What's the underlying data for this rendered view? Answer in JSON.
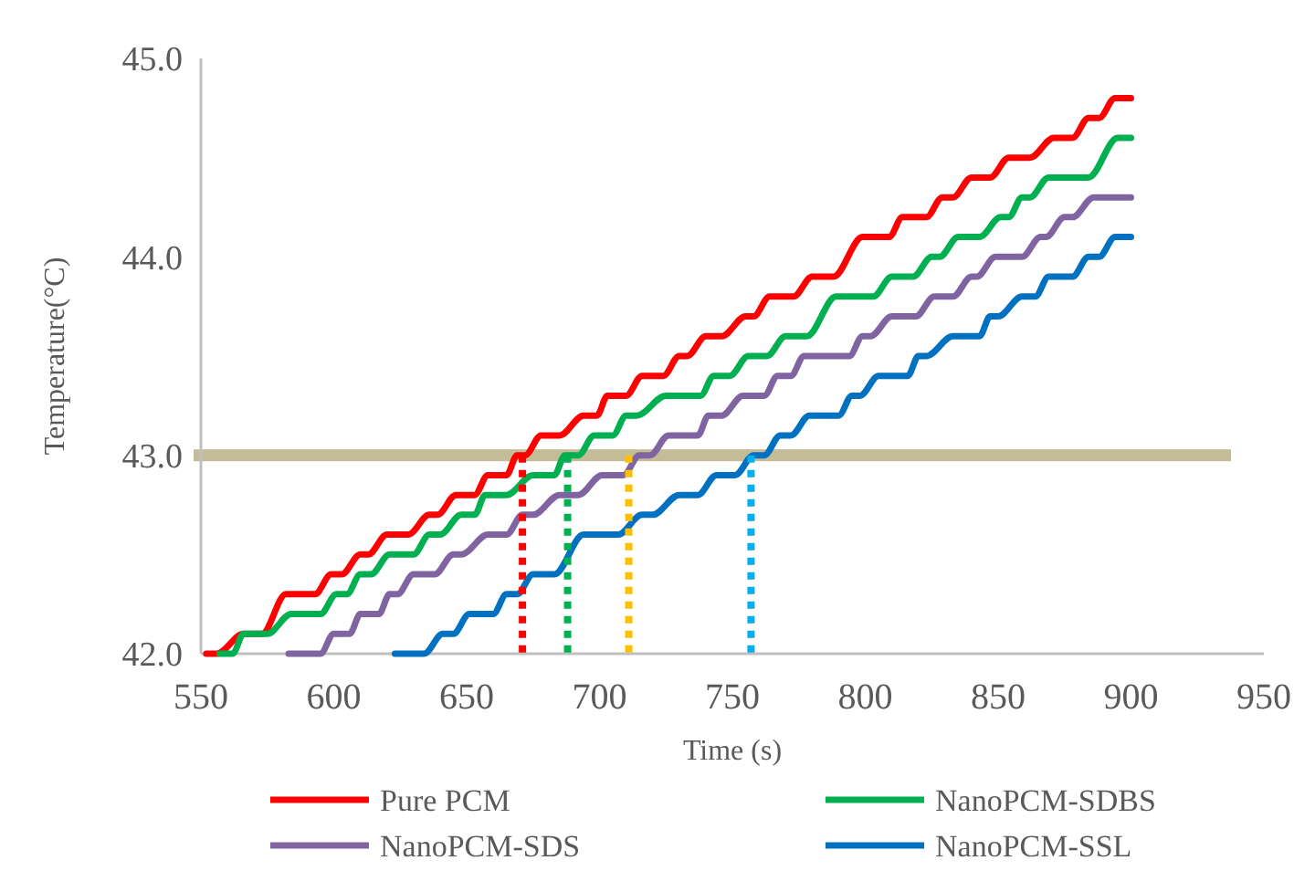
{
  "chart_data": {
    "type": "line",
    "xlabel": "Time (s)",
    "ylabel": "Temperature(°C)",
    "xlim": [
      550,
      950
    ],
    "ylim": [
      42,
      45
    ],
    "xticks": [
      550,
      600,
      650,
      700,
      750,
      800,
      850,
      900,
      950
    ],
    "yticks": [
      {
        "value": 42,
        "label": "42.0"
      },
      {
        "value": 43,
        "label": "43.0"
      },
      {
        "value": 44,
        "label": "44.0"
      },
      {
        "value": 45,
        "label": "45.0"
      }
    ],
    "grid": false,
    "legend": "bottom",
    "marker": "none",
    "bands": [
      {
        "axis": "y",
        "from": 42.97,
        "to": 43.03,
        "color": "#c4bc96"
      }
    ],
    "series": [
      {
        "name": "Pure PCM",
        "color": "#ff0000",
        "x": [
          552,
          556,
          566,
          573,
          582,
          593,
          599,
          603,
          610,
          613,
          620,
          628,
          636,
          639,
          646,
          653,
          658,
          665,
          669,
          672,
          678,
          685,
          694,
          699,
          703,
          710,
          716,
          724,
          730,
          733,
          740,
          746,
          755,
          758,
          764,
          773,
          780,
          788,
          799,
          809,
          814,
          823,
          829,
          833,
          840,
          847,
          854,
          862,
          871,
          878,
          884,
          888,
          894,
          900
        ],
        "values": [
          42.0,
          42.0,
          42.1,
          42.1,
          42.3,
          42.3,
          42.4,
          42.4,
          42.5,
          42.5,
          42.6,
          42.6,
          42.7,
          42.7,
          42.8,
          42.8,
          42.9,
          42.9,
          43.0,
          43.0,
          43.1,
          43.1,
          43.2,
          43.2,
          43.3,
          43.3,
          43.4,
          43.4,
          43.5,
          43.5,
          43.6,
          43.6,
          43.7,
          43.7,
          43.8,
          43.8,
          43.9,
          43.9,
          44.1,
          44.1,
          44.2,
          44.2,
          44.3,
          44.3,
          44.4,
          44.4,
          44.5,
          44.5,
          44.6,
          44.6,
          44.7,
          44.7,
          44.8,
          44.8
        ]
      },
      {
        "name": "NanoPCM-SDBS",
        "color": "#00b050",
        "x": [
          557,
          562,
          566,
          575,
          584,
          595,
          601,
          605,
          610,
          614,
          621,
          630,
          636,
          640,
          648,
          653,
          657,
          665,
          675,
          683,
          687,
          692,
          698,
          705,
          710,
          714,
          725,
          738,
          743,
          749,
          756,
          763,
          770,
          778,
          789,
          803,
          810,
          818,
          825,
          828,
          835,
          843,
          851,
          854,
          859,
          862,
          869,
          884,
          895,
          900
        ],
        "values": [
          42.0,
          42.0,
          42.1,
          42.1,
          42.2,
          42.2,
          42.3,
          42.3,
          42.4,
          42.4,
          42.5,
          42.5,
          42.6,
          42.6,
          42.7,
          42.7,
          42.8,
          42.8,
          42.9,
          42.9,
          43.0,
          43.0,
          43.1,
          43.1,
          43.2,
          43.2,
          43.3,
          43.3,
          43.4,
          43.4,
          43.5,
          43.5,
          43.6,
          43.6,
          43.8,
          43.8,
          43.9,
          43.9,
          44.0,
          44.0,
          44.1,
          44.1,
          44.2,
          44.2,
          44.3,
          44.3,
          44.4,
          44.4,
          44.6,
          44.6
        ]
      },
      {
        "name": "NanoPCM-SDS",
        "color": "#8064a2",
        "x": [
          583,
          595,
          600,
          606,
          610,
          617,
          621,
          624,
          630,
          638,
          645,
          648,
          658,
          665,
          671,
          675,
          685,
          692,
          701,
          709,
          715,
          719,
          726,
          737,
          741,
          746,
          754,
          762,
          767,
          772,
          777,
          794,
          799,
          802,
          810,
          819,
          826,
          833,
          840,
          842,
          849,
          859,
          866,
          868,
          875,
          878,
          886,
          900
        ],
        "values": [
          42.0,
          42.0,
          42.1,
          42.1,
          42.2,
          42.2,
          42.3,
          42.3,
          42.4,
          42.4,
          42.5,
          42.5,
          42.6,
          42.6,
          42.7,
          42.7,
          42.8,
          42.8,
          42.9,
          42.9,
          43.0,
          43.0,
          43.1,
          43.1,
          43.2,
          43.2,
          43.3,
          43.3,
          43.4,
          43.4,
          43.5,
          43.5,
          43.6,
          43.6,
          43.7,
          43.7,
          43.8,
          43.8,
          43.9,
          43.9,
          44.0,
          44.0,
          44.1,
          44.1,
          44.2,
          44.2,
          44.3,
          44.3
        ]
      },
      {
        "name": "NanoPCM-SSL",
        "color": "#0070c0",
        "x": [
          623,
          634,
          641,
          645,
          651,
          660,
          665,
          669,
          675,
          683,
          694,
          707,
          716,
          720,
          730,
          737,
          744,
          751,
          758,
          762,
          768,
          772,
          779,
          790,
          795,
          798,
          805,
          816,
          820,
          823,
          833,
          843,
          847,
          850,
          859,
          864,
          869,
          878,
          884,
          888,
          894,
          900
        ],
        "values": [
          42.0,
          42.0,
          42.1,
          42.1,
          42.2,
          42.2,
          42.3,
          42.3,
          42.4,
          42.4,
          42.6,
          42.6,
          42.7,
          42.7,
          42.8,
          42.8,
          42.9,
          42.9,
          43.0,
          43.0,
          43.1,
          43.1,
          43.2,
          43.2,
          43.3,
          43.3,
          43.4,
          43.4,
          43.5,
          43.5,
          43.6,
          43.6,
          43.7,
          43.7,
          43.8,
          43.8,
          43.9,
          43.9,
          44.0,
          44.0,
          44.1,
          44.1
        ]
      },
      {
        "color": "#ff0000",
        "line_style": "dotted",
        "x": [
          671,
          671
        ],
        "values": [
          43.0,
          42.0
        ]
      },
      {
        "color": "#00b050",
        "line_style": "dotted",
        "x": [
          688,
          688
        ],
        "values": [
          43.0,
          42.0
        ]
      },
      {
        "color": "#ffc000",
        "line_style": "dotted",
        "x": [
          711,
          711
        ],
        "values": [
          43.0,
          42.0
        ]
      },
      {
        "color": "#00b0f0",
        "line_style": "dotted",
        "x": [
          757,
          757
        ],
        "values": [
          43.0,
          42.0
        ]
      }
    ]
  }
}
